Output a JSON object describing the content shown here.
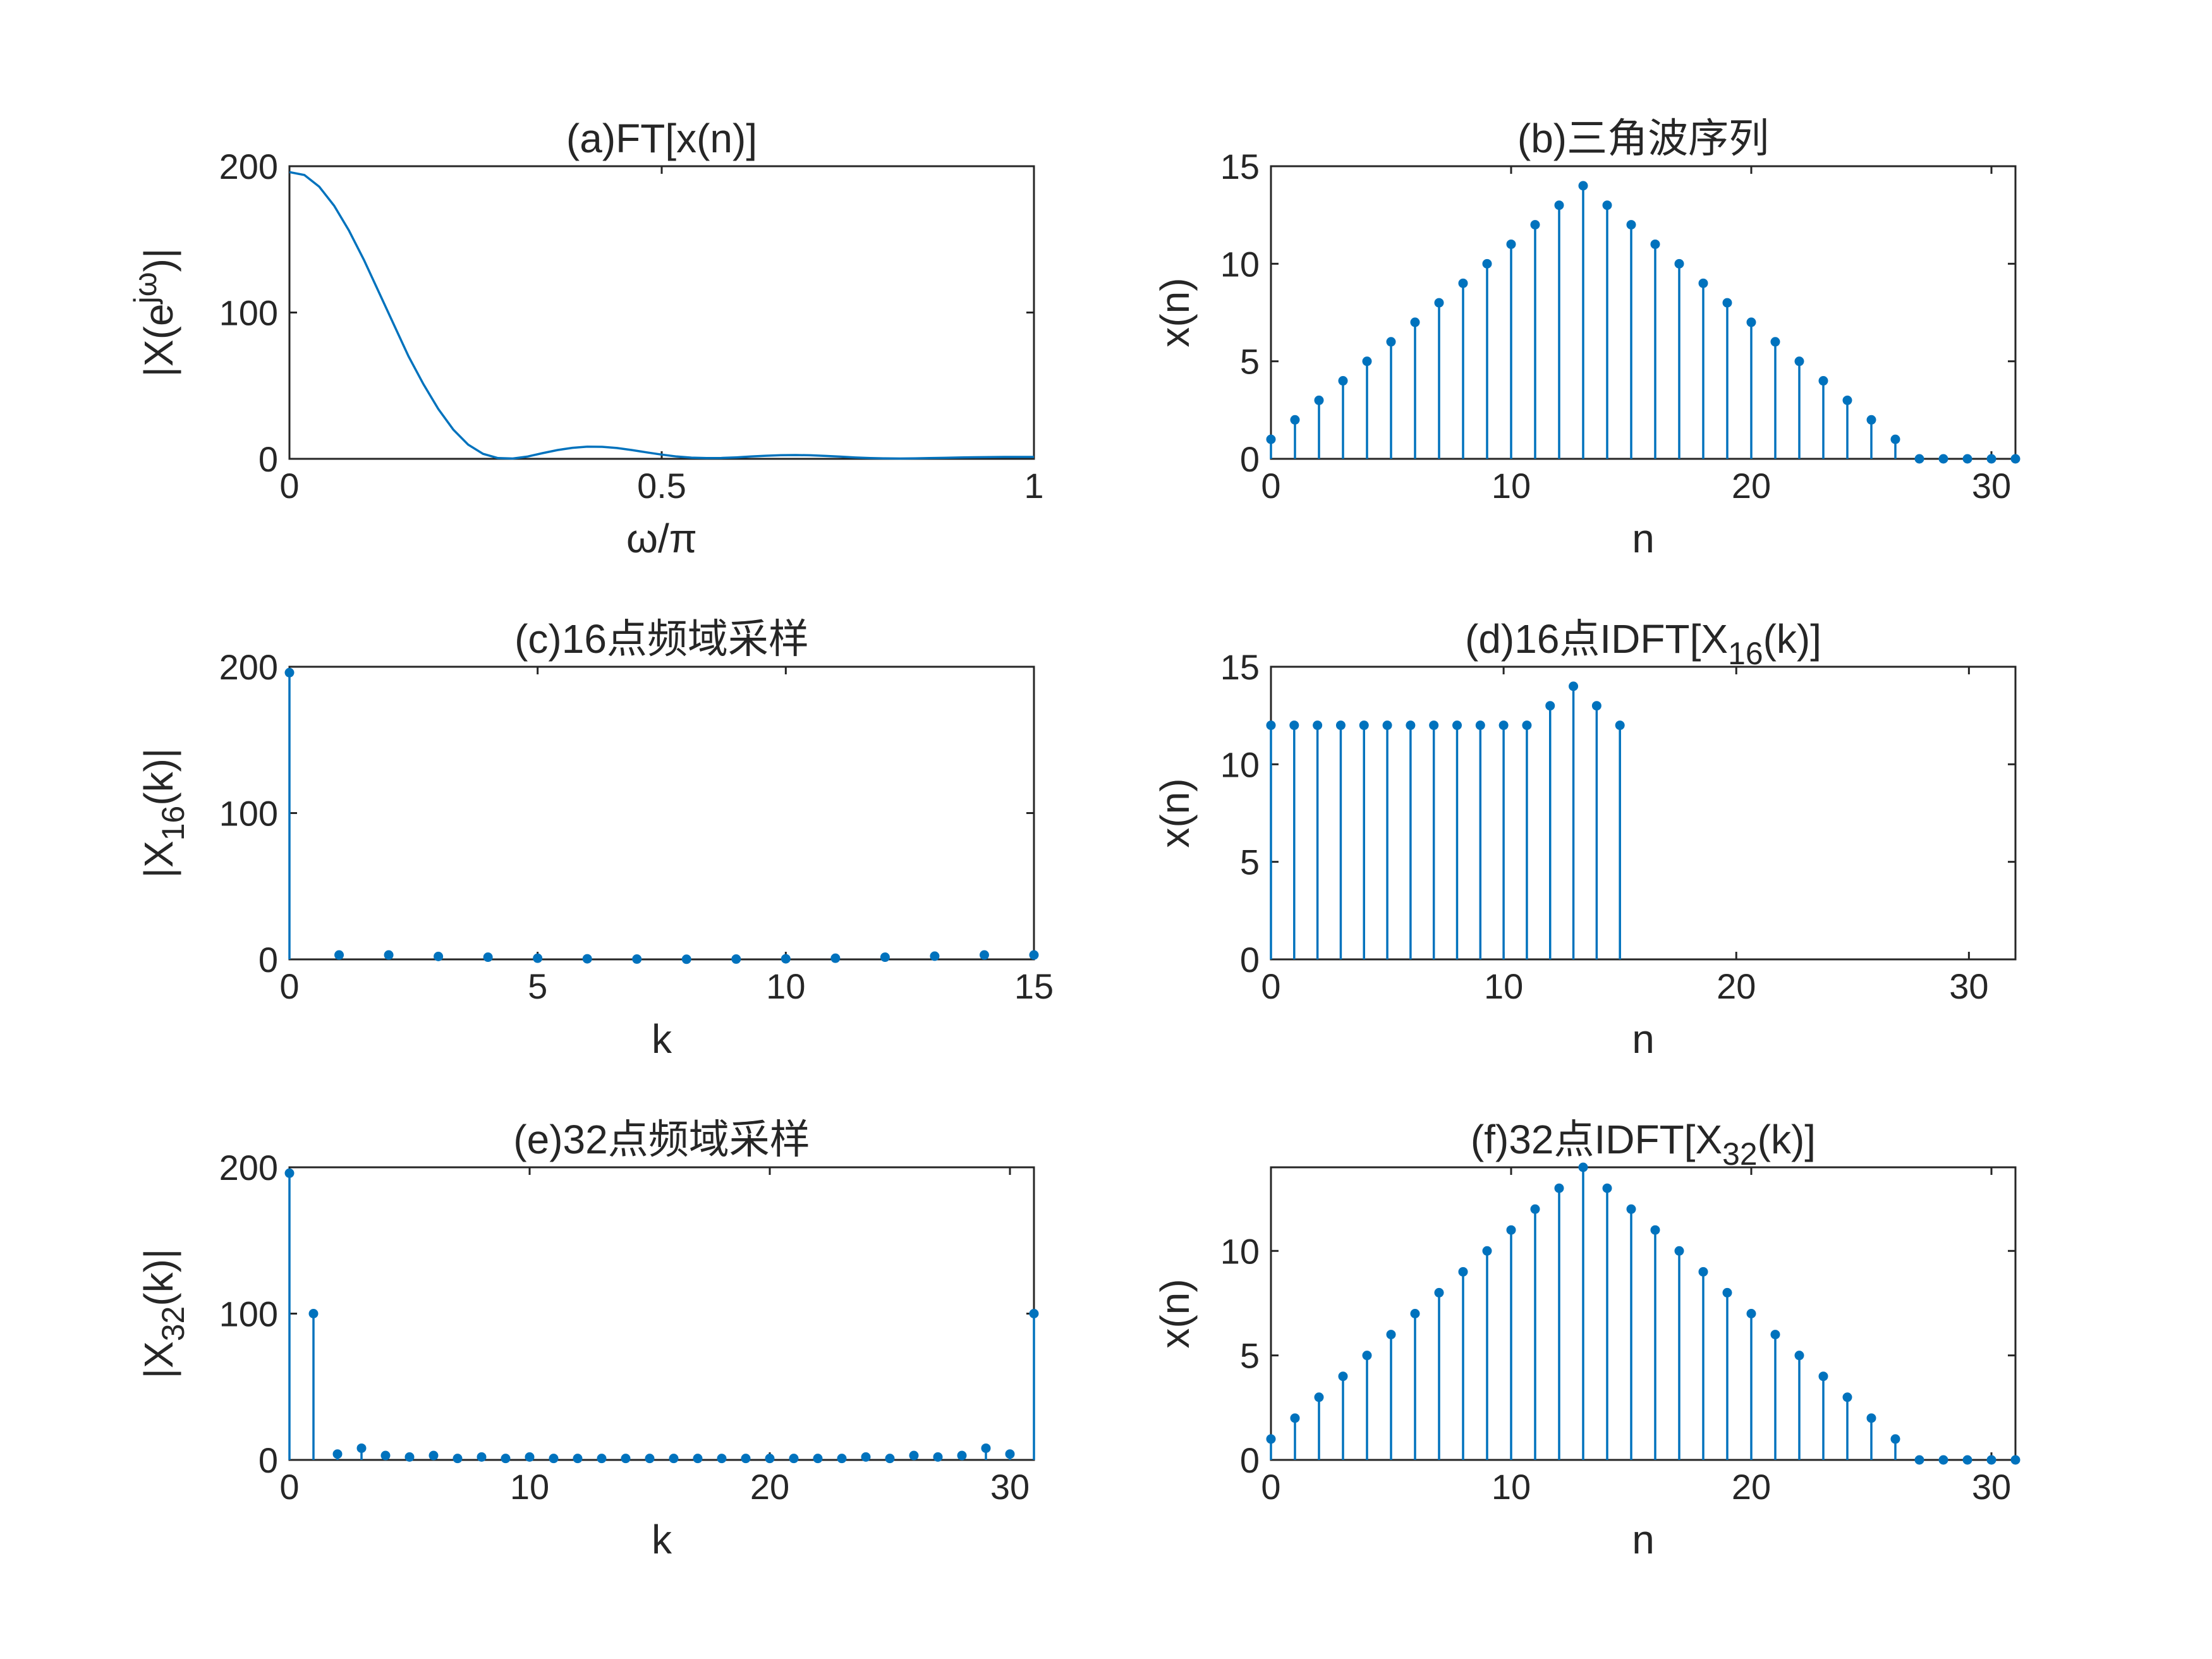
{
  "colors": {
    "series": "#0072BD",
    "axes": "#262626",
    "background": "#ffffff"
  },
  "chart_data": [
    {
      "id": "a",
      "type": "line",
      "title": "(a)FT[x(n)]",
      "xlabel": "ω/π",
      "ylabel": "|X(e^{jω})|",
      "xlim": [
        0,
        1
      ],
      "ylim": [
        0,
        200
      ],
      "xticks": [
        0,
        0.5,
        1
      ],
      "xticklabels": [
        "0",
        "0.5",
        "1"
      ],
      "yticks": [
        0,
        100,
        200
      ],
      "yticklabels": [
        "0",
        "100",
        "200"
      ],
      "grid": false,
      "x": [
        0,
        0.02,
        0.04,
        0.06,
        0.08,
        0.1,
        0.12,
        0.14,
        0.16,
        0.18,
        0.2,
        0.22,
        0.24,
        0.26,
        0.28,
        0.3,
        0.32,
        0.34,
        0.36,
        0.38,
        0.4,
        0.42,
        0.44,
        0.46,
        0.48,
        0.5,
        0.52,
        0.54,
        0.56,
        0.58,
        0.6,
        0.62,
        0.64,
        0.66,
        0.68,
        0.7,
        0.72,
        0.74,
        0.76,
        0.78,
        0.8,
        0.82,
        0.84,
        0.86,
        0.88,
        0.9,
        0.92,
        0.94,
        0.96,
        0.98,
        1
      ],
      "values": [
        196,
        194,
        186,
        173,
        156,
        136,
        114,
        92,
        70,
        51,
        34,
        20,
        9.7,
        3.4,
        0.5,
        0.2,
        1.6,
        3.9,
        6.0,
        7.5,
        8.3,
        8.2,
        7.4,
        6.0,
        4.4,
        2.9,
        1.6,
        0.8,
        0.5,
        0.6,
        1.0,
        1.6,
        2.1,
        2.5,
        2.6,
        2.4,
        2.0,
        1.5,
        0.9,
        0.5,
        0.3,
        0.2,
        0.3,
        0.5,
        0.7,
        0.9,
        1.1,
        1.2,
        1.3,
        1.3,
        1.3
      ]
    },
    {
      "id": "b",
      "type": "stem",
      "title": "(b)三角波序列",
      "xlabel": "n",
      "ylabel": "x(n)",
      "xlim": [
        0,
        31
      ],
      "ylim": [
        0,
        15
      ],
      "xticks": [
        0,
        10,
        20,
        30
      ],
      "xticklabels": [
        "0",
        "10",
        "20",
        "30"
      ],
      "yticks": [
        0,
        5,
        10,
        15
      ],
      "yticklabels": [
        "0",
        "5",
        "10",
        "15"
      ],
      "grid": false,
      "values": [
        1,
        2,
        3,
        4,
        5,
        6,
        7,
        8,
        9,
        10,
        11,
        12,
        13,
        14,
        13,
        12,
        11,
        10,
        9,
        8,
        7,
        6,
        5,
        4,
        3,
        2,
        1,
        0,
        0,
        0,
        0,
        0
      ]
    },
    {
      "id": "c",
      "type": "stem",
      "title": "(c)16点频域采样",
      "xlabel": "k",
      "ylabel": "|X_{16}(k)|",
      "xlim": [
        0,
        15
      ],
      "ylim": [
        0,
        200
      ],
      "xticks": [
        0,
        5,
        10,
        15
      ],
      "xticklabels": [
        "0",
        "5",
        "10",
        "15"
      ],
      "yticks": [
        0,
        100,
        200
      ],
      "yticklabels": [
        "0",
        "100",
        "200"
      ],
      "grid": false,
      "values": [
        196,
        3,
        3,
        2,
        1.5,
        0.8,
        0.4,
        0.2,
        0.1,
        0.2,
        0.4,
        0.8,
        1.5,
        2.2,
        3,
        3
      ]
    },
    {
      "id": "d",
      "type": "stem",
      "title": "(d)16点IDFT[X_{16}(k)]",
      "xlabel": "n",
      "ylabel": "x(n)",
      "xlim": [
        0,
        32
      ],
      "ylim": [
        0,
        15
      ],
      "xticks": [
        0,
        10,
        20,
        30
      ],
      "xticklabels": [
        "0",
        "10",
        "20",
        "30"
      ],
      "yticks": [
        0,
        5,
        10,
        15
      ],
      "yticklabels": [
        "0",
        "5",
        "10",
        "15"
      ],
      "grid": false,
      "values": [
        12,
        12,
        12,
        12,
        12,
        12,
        12,
        12,
        12,
        12,
        12,
        12,
        13,
        14,
        13,
        12
      ]
    },
    {
      "id": "e",
      "type": "stem",
      "title": "(e)32点频域采样",
      "xlabel": "k",
      "ylabel": "|X_{32}(k)|",
      "xlim": [
        0,
        31
      ],
      "ylim": [
        0,
        200
      ],
      "xticks": [
        0,
        10,
        20,
        30
      ],
      "xticklabels": [
        "0",
        "10",
        "20",
        "30"
      ],
      "yticks": [
        0,
        100,
        200
      ],
      "yticklabels": [
        "0",
        "100",
        "200"
      ],
      "grid": false,
      "values": [
        196,
        100,
        4,
        8,
        3,
        2,
        3,
        1,
        2,
        1,
        2,
        1,
        1,
        1,
        1,
        1,
        1,
        1,
        1,
        1,
        1,
        1,
        1,
        1,
        2,
        1,
        3,
        2,
        3,
        8,
        4,
        100
      ]
    },
    {
      "id": "f",
      "type": "stem",
      "title": "(f)32点IDFT[X_{32}(k)]",
      "xlabel": "n",
      "ylabel": "x(n)",
      "xlim": [
        0,
        31
      ],
      "ylim": [
        0,
        14
      ],
      "xticks": [
        0,
        10,
        20,
        30
      ],
      "xticklabels": [
        "0",
        "10",
        "20",
        "30"
      ],
      "yticks": [
        0,
        5,
        10
      ],
      "yticklabels": [
        "0",
        "5",
        "10"
      ],
      "grid": false,
      "values": [
        1,
        2,
        3,
        4,
        5,
        6,
        7,
        8,
        9,
        10,
        11,
        12,
        13,
        14,
        13,
        12,
        11,
        10,
        9,
        8,
        7,
        6,
        5,
        4,
        3,
        2,
        1,
        0,
        0,
        0,
        0,
        0
      ]
    }
  ]
}
